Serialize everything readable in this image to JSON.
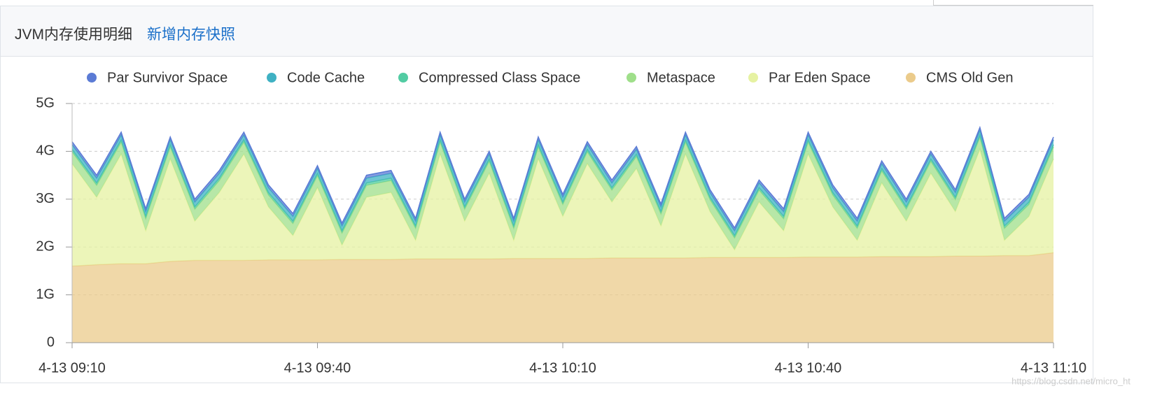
{
  "header": {
    "title": "JVM内存使用明细",
    "link": "新增内存快照"
  },
  "watermark": "https://blog.csdn.net/micro_ht",
  "chart_data": {
    "type": "stacked-area",
    "categories": [
      "4-13 09:10",
      null,
      null,
      null,
      null,
      null,
      null,
      null,
      null,
      null,
      "4-13 09:40",
      null,
      null,
      null,
      null,
      null,
      null,
      null,
      null,
      null,
      "4-13 10:10",
      null,
      null,
      null,
      null,
      null,
      null,
      null,
      null,
      null,
      "4-13 10:40",
      null,
      null,
      null,
      null,
      null,
      null,
      null,
      null,
      null,
      "4-13 11:10"
    ],
    "ylim": [
      0,
      5
    ],
    "yticks": [
      0,
      {
        "value": 1,
        "label": "1G"
      },
      {
        "value": 2,
        "label": "2G"
      },
      {
        "value": 3,
        "label": "3G"
      },
      {
        "value": 4,
        "label": "4G"
      },
      {
        "value": 5,
        "label": "5G"
      }
    ],
    "grid": true,
    "legend": "top",
    "series": [
      {
        "name": "Par Survivor Space",
        "color": "#5b7bd5",
        "values": [
          0.06,
          0.06,
          0.06,
          0.06,
          0.06,
          0.06,
          0.06,
          0.06,
          0.06,
          0.06,
          0.06,
          0.06,
          0.06,
          0.06,
          0.06,
          0.06,
          0.06,
          0.06,
          0.06,
          0.06,
          0.06,
          0.06,
          0.06,
          0.06,
          0.06,
          0.06,
          0.06,
          0.06,
          0.06,
          0.06,
          0.06,
          0.06,
          0.06,
          0.06,
          0.06,
          0.06,
          0.06,
          0.06,
          0.06,
          0.06,
          0.06
        ]
      },
      {
        "name": "Code Cache",
        "color": "#3fb1c3",
        "values": [
          0.1,
          0.1,
          0.1,
          0.1,
          0.1,
          0.1,
          0.1,
          0.1,
          0.1,
          0.1,
          0.1,
          0.1,
          0.1,
          0.1,
          0.1,
          0.1,
          0.1,
          0.1,
          0.1,
          0.1,
          0.1,
          0.1,
          0.1,
          0.1,
          0.1,
          0.1,
          0.1,
          0.1,
          0.1,
          0.1,
          0.1,
          0.1,
          0.1,
          0.1,
          0.1,
          0.1,
          0.1,
          0.1,
          0.1,
          0.1,
          0.1
        ]
      },
      {
        "name": "Compressed Class Space",
        "color": "#52cca3",
        "values": [
          0.05,
          0.05,
          0.05,
          0.05,
          0.05,
          0.05,
          0.05,
          0.05,
          0.05,
          0.05,
          0.05,
          0.05,
          0.05,
          0.05,
          0.05,
          0.05,
          0.05,
          0.05,
          0.05,
          0.05,
          0.05,
          0.05,
          0.05,
          0.05,
          0.05,
          0.05,
          0.05,
          0.05,
          0.05,
          0.05,
          0.05,
          0.05,
          0.05,
          0.05,
          0.05,
          0.05,
          0.05,
          0.05,
          0.05,
          0.05,
          0.05
        ]
      },
      {
        "name": "Metaspace",
        "color": "#9fdf8a",
        "values": [
          0.25,
          0.25,
          0.25,
          0.25,
          0.25,
          0.25,
          0.25,
          0.25,
          0.25,
          0.25,
          0.25,
          0.25,
          0.25,
          0.25,
          0.25,
          0.25,
          0.25,
          0.25,
          0.25,
          0.25,
          0.25,
          0.25,
          0.25,
          0.25,
          0.25,
          0.25,
          0.25,
          0.25,
          0.25,
          0.25,
          0.25,
          0.25,
          0.25,
          0.25,
          0.25,
          0.25,
          0.25,
          0.25,
          0.25,
          0.25,
          0.25
        ]
      },
      {
        "name": "Par Eden Space",
        "color": "#e6f2a2",
        "values": [
          2.14,
          1.41,
          2.29,
          0.69,
          2.14,
          0.82,
          1.42,
          2.22,
          1.11,
          0.51,
          1.51,
          0.3,
          1.3,
          1.4,
          0.39,
          2.19,
          0.79,
          1.79,
          0.38,
          2.08,
          0.88,
          1.98,
          1.17,
          1.87,
          0.67,
          2.17,
          0.96,
          0.16,
          1.16,
          0.56,
          2.15,
          1.05,
          0.35,
          1.54,
          0.74,
          1.74,
          0.93,
          2.23,
          0.32,
          0.82,
          1.96
        ]
      },
      {
        "name": "CMS Old Gen",
        "color": "#ebcb8b",
        "values": [
          1.6,
          1.63,
          1.65,
          1.65,
          1.7,
          1.72,
          1.72,
          1.72,
          1.73,
          1.73,
          1.73,
          1.74,
          1.74,
          1.74,
          1.75,
          1.75,
          1.75,
          1.75,
          1.76,
          1.76,
          1.76,
          1.76,
          1.77,
          1.77,
          1.77,
          1.77,
          1.78,
          1.78,
          1.78,
          1.78,
          1.79,
          1.79,
          1.79,
          1.8,
          1.8,
          1.8,
          1.81,
          1.81,
          1.82,
          1.82,
          1.88
        ]
      }
    ]
  }
}
